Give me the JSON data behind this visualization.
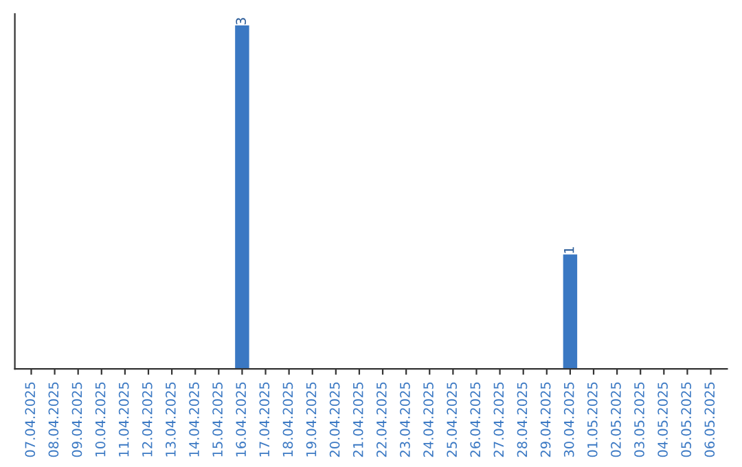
{
  "chart_data": {
    "type": "bar",
    "categories": [
      "07.04.2025",
      "08.04.2025",
      "09.04.2025",
      "10.04.2025",
      "11.04.2025",
      "12.04.2025",
      "13.04.2025",
      "14.04.2025",
      "15.04.2025",
      "16.04.2025",
      "17.04.2025",
      "18.04.2025",
      "19.04.2025",
      "20.04.2025",
      "21.04.2025",
      "22.04.2025",
      "23.04.2025",
      "24.04.2025",
      "25.04.2025",
      "26.04.2025",
      "27.04.2025",
      "28.04.2025",
      "29.04.2025",
      "30.04.2025",
      "01.05.2025",
      "02.05.2025",
      "03.05.2025",
      "04.05.2025",
      "05.05.2025",
      "06.05.2025"
    ],
    "values": [
      0,
      0,
      0,
      0,
      0,
      0,
      0,
      0,
      0,
      3,
      0,
      0,
      0,
      0,
      0,
      0,
      0,
      0,
      0,
      0,
      0,
      0,
      0,
      1,
      0,
      0,
      0,
      0,
      0,
      0
    ],
    "value_labels": [
      null,
      null,
      null,
      null,
      null,
      null,
      null,
      null,
      null,
      "3",
      null,
      null,
      null,
      null,
      null,
      null,
      null,
      null,
      null,
      null,
      null,
      null,
      null,
      "1",
      null,
      null,
      null,
      null,
      null,
      null
    ],
    "color": "#3a78c3",
    "ylim": [
      0,
      3.1
    ],
    "tick_labels": "x",
    "grid": false,
    "legend": false
  }
}
